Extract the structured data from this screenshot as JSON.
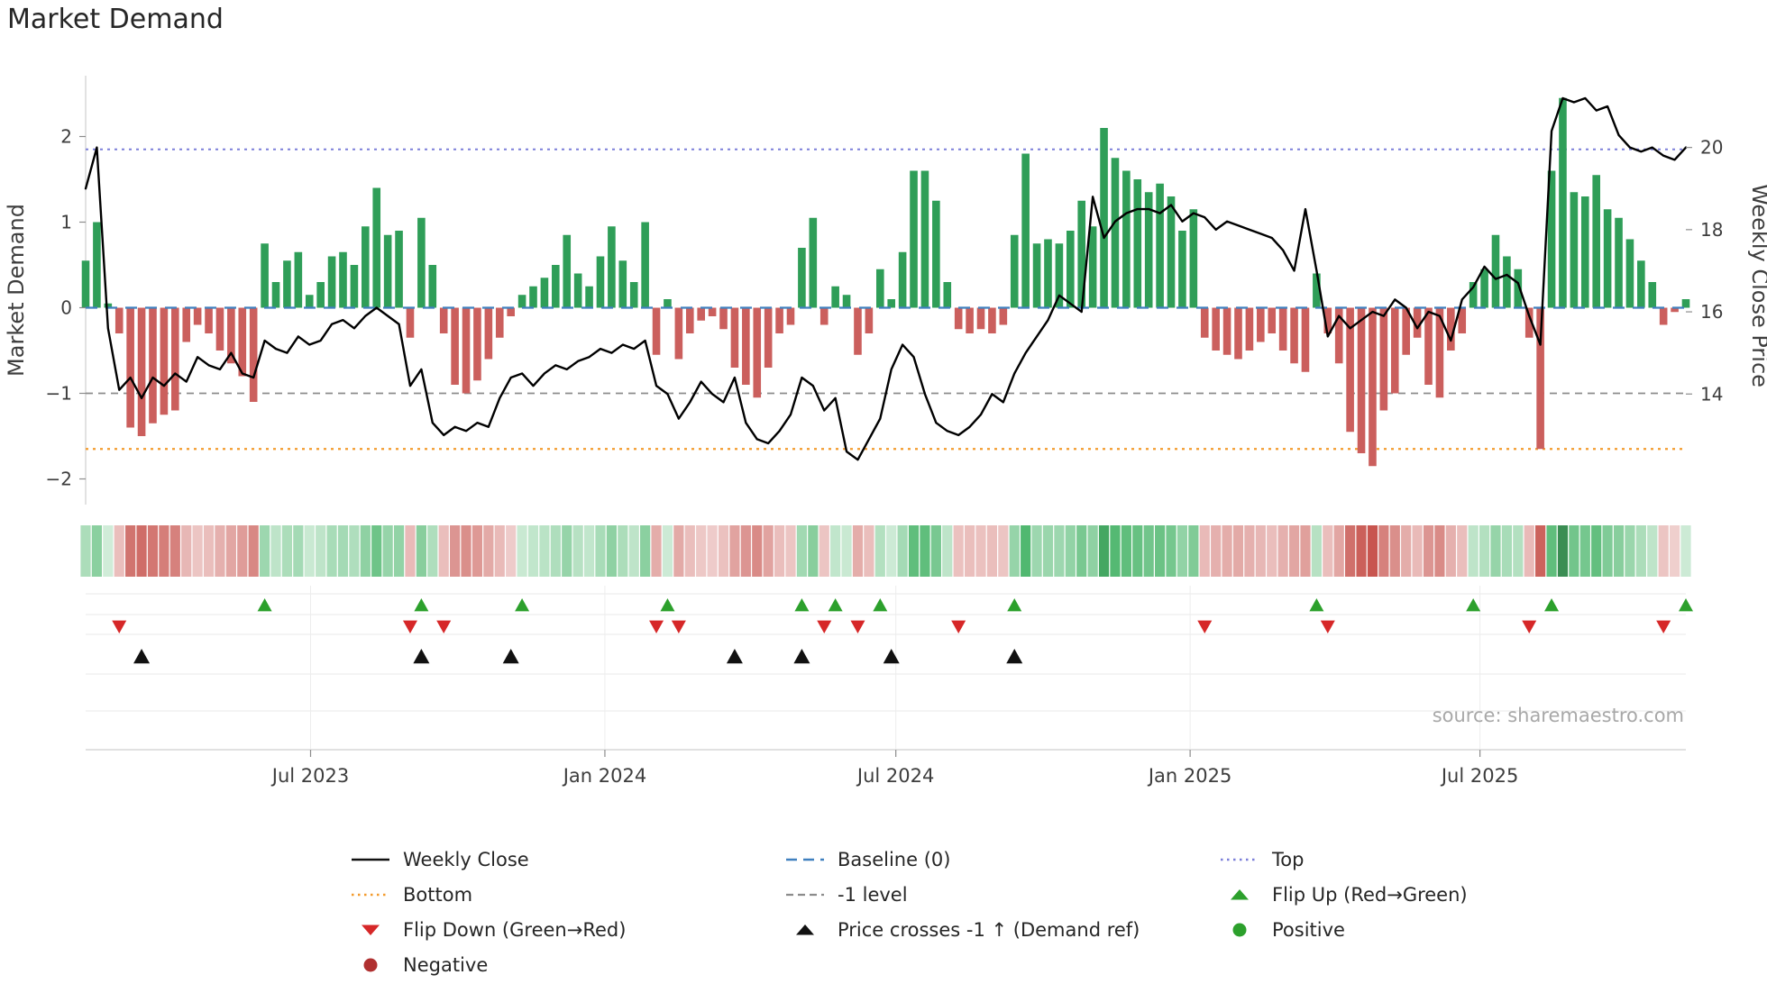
{
  "title": "Market Demand",
  "source": "source: sharemaestro.com",
  "axes": {
    "left_label": "Market Demand",
    "right_label": "Weekly Close Price",
    "left_ticks": [
      {
        "label": "2",
        "value": 2
      },
      {
        "label": "1",
        "value": 1
      },
      {
        "label": "0",
        "value": 0
      },
      {
        "label": "−1",
        "value": -1
      },
      {
        "label": "−2",
        "value": -2
      }
    ],
    "right_ticks": [
      {
        "label": "20",
        "value": 20
      },
      {
        "label": "18",
        "value": 18
      },
      {
        "label": "16",
        "value": 16
      },
      {
        "label": "14",
        "value": 14
      }
    ],
    "x_ticks": [
      {
        "label": "Jul 2023",
        "week": 20.1
      },
      {
        "label": "Jan 2024",
        "week": 46.4
      },
      {
        "label": "Jul 2024",
        "week": 72.4
      },
      {
        "label": "Jan 2025",
        "week": 98.7
      },
      {
        "label": "Jul 2025",
        "week": 124.6
      }
    ]
  },
  "colors": {
    "bar_positive": "#2f9e58",
    "bar_negative": "#cb5f5d",
    "price_line": "#000000",
    "baseline_line": "#4080bf",
    "top_line": "#7b7fd9",
    "bottom_line": "#f39b2d",
    "minus_one_line": "#8c8c8c",
    "flip_up": "#2ca02c",
    "flip_down": "#d62728",
    "price_cross": "#111111",
    "positive_dot": "#2ca02c",
    "negative_dot": "#b03030"
  },
  "legend": {
    "items": [
      {
        "key": "weekly-close",
        "label": "Weekly Close",
        "swatch": "line-solid",
        "color": "#111111"
      },
      {
        "key": "baseline",
        "label": "Baseline (0)",
        "swatch": "line-dash-long",
        "color": "#4080bf"
      },
      {
        "key": "top",
        "label": "Top",
        "swatch": "line-dot",
        "color": "#7b7fd9"
      },
      {
        "key": "bottom",
        "label": "Bottom",
        "swatch": "line-dot",
        "color": "#f39b2d"
      },
      {
        "key": "minus-one-level",
        "label": "-1 level",
        "swatch": "line-dash",
        "color": "#8c8c8c"
      },
      {
        "key": "flip-up",
        "label": "Flip Up (Red→Green)",
        "swatch": "tri-up",
        "color": "#2ca02c"
      },
      {
        "key": "flip-down",
        "label": "Flip Down (Green→Red)",
        "swatch": "tri-down",
        "color": "#d62728"
      },
      {
        "key": "price-cross",
        "label": "Price crosses -1 ↑ (Demand ref)",
        "swatch": "tri-up",
        "color": "#111111"
      },
      {
        "key": "positive",
        "label": "Positive",
        "swatch": "dot",
        "color": "#2ca02c"
      },
      {
        "key": "negative",
        "label": "Negative",
        "swatch": "dot",
        "color": "#b03030"
      }
    ]
  },
  "chart_data": {
    "type": "bar+line",
    "title": "Market Demand",
    "x_start_date": "2023-02-10",
    "x_interval": "weekly",
    "xlabel": "",
    "ylabel_left": "Market Demand",
    "ylabel_right": "Weekly Close Price",
    "ylim_left": [
      -2.3,
      2.7
    ],
    "right_axis_tick_values": [
      20,
      18,
      16,
      14
    ],
    "grid": false,
    "legend_position": "bottom",
    "reference_lines": {
      "top": 1.85,
      "baseline": 0,
      "minus_one": -1,
      "bottom": -1.65
    },
    "series": [
      {
        "name": "Market Demand",
        "type": "bar",
        "axis": "left",
        "values": [
          0.55,
          1.0,
          0.05,
          -0.3,
          -1.4,
          -1.5,
          -1.35,
          -1.25,
          -1.2,
          -0.4,
          -0.2,
          -0.3,
          -0.5,
          -0.65,
          -0.8,
          -1.1,
          0.75,
          0.3,
          0.55,
          0.65,
          0.15,
          0.3,
          0.6,
          0.65,
          0.5,
          0.95,
          1.4,
          0.85,
          0.9,
          -0.35,
          1.05,
          0.5,
          -0.3,
          -0.9,
          -1.0,
          -0.85,
          -0.6,
          -0.35,
          -0.1,
          0.15,
          0.25,
          0.35,
          0.5,
          0.85,
          0.4,
          0.25,
          0.6,
          0.95,
          0.55,
          0.3,
          1.0,
          -0.55,
          0.1,
          -0.6,
          -0.3,
          -0.15,
          -0.1,
          -0.25,
          -0.7,
          -0.9,
          -1.05,
          -0.7,
          -0.3,
          -0.2,
          0.7,
          1.05,
          -0.2,
          0.25,
          0.15,
          -0.55,
          -0.3,
          0.45,
          0.1,
          0.65,
          1.6,
          1.6,
          1.25,
          0.3,
          -0.25,
          -0.3,
          -0.25,
          -0.3,
          -0.2,
          0.85,
          1.8,
          0.75,
          0.8,
          0.75,
          0.9,
          1.25,
          0.95,
          2.1,
          1.75,
          1.6,
          1.5,
          1.35,
          1.45,
          1.3,
          0.9,
          1.15,
          -0.35,
          -0.5,
          -0.55,
          -0.6,
          -0.5,
          -0.4,
          -0.3,
          -0.5,
          -0.65,
          -0.75,
          0.4,
          -0.3,
          -0.65,
          -1.45,
          -1.7,
          -1.85,
          -1.2,
          -1.0,
          -0.55,
          -0.35,
          -0.9,
          -1.05,
          -0.5,
          -0.3,
          0.3,
          0.45,
          0.85,
          0.6,
          0.45,
          -0.35,
          -1.65,
          1.6,
          2.45,
          1.35,
          1.3,
          1.55,
          1.15,
          1.05,
          0.8,
          0.55,
          0.3,
          -0.2,
          -0.05,
          0.1
        ]
      },
      {
        "name": "Weekly Close",
        "type": "line",
        "axis": "right",
        "values": [
          19.0,
          20.0,
          15.6,
          14.1,
          14.4,
          13.9,
          14.4,
          14.2,
          14.5,
          14.3,
          14.9,
          14.7,
          14.6,
          15.0,
          14.5,
          14.4,
          15.3,
          15.1,
          15.0,
          15.4,
          15.2,
          15.3,
          15.7,
          15.8,
          15.6,
          15.9,
          16.1,
          15.9,
          15.7,
          14.2,
          14.6,
          13.3,
          13.0,
          13.2,
          13.1,
          13.3,
          13.2,
          13.9,
          14.4,
          14.5,
          14.2,
          14.5,
          14.7,
          14.6,
          14.8,
          14.9,
          15.1,
          15.0,
          15.2,
          15.1,
          15.3,
          14.2,
          14.0,
          13.4,
          13.8,
          14.3,
          14.0,
          13.8,
          14.4,
          13.3,
          12.9,
          12.8,
          13.1,
          13.5,
          14.4,
          14.2,
          13.6,
          13.9,
          12.6,
          12.4,
          12.9,
          13.4,
          14.6,
          15.2,
          14.9,
          14.0,
          13.3,
          13.1,
          13.0,
          13.2,
          13.5,
          14.0,
          13.8,
          14.5,
          15.0,
          15.4,
          15.8,
          16.4,
          16.2,
          16.0,
          18.8,
          17.8,
          18.2,
          18.4,
          18.5,
          18.5,
          18.4,
          18.6,
          18.2,
          18.4,
          18.3,
          18.0,
          18.2,
          18.1,
          18.0,
          17.9,
          17.8,
          17.5,
          17.0,
          18.5,
          17.0,
          15.4,
          15.9,
          15.6,
          15.8,
          16.0,
          15.9,
          16.3,
          16.1,
          15.6,
          16.0,
          15.9,
          15.3,
          16.3,
          16.6,
          17.1,
          16.8,
          16.9,
          16.7,
          15.9,
          15.2,
          20.4,
          21.2,
          21.1,
          21.2,
          20.9,
          21.0,
          20.3,
          20.0,
          19.9,
          20.0,
          19.8,
          19.7,
          20.0
        ]
      }
    ],
    "heatmap": {
      "description": "strip below main chart; cell color sign/intensity mirrors Market Demand bar values",
      "source_series": "Market Demand"
    },
    "markers": {
      "flip_up_weeks": [
        16,
        30,
        39,
        52,
        64,
        67,
        71,
        83,
        110,
        124,
        131,
        143
      ],
      "flip_down_weeks": [
        3,
        29,
        32,
        51,
        53,
        66,
        69,
        78,
        100,
        111,
        129,
        141
      ],
      "price_cross_weeks": [
        5,
        30,
        38,
        58,
        64,
        72,
        83
      ]
    }
  }
}
